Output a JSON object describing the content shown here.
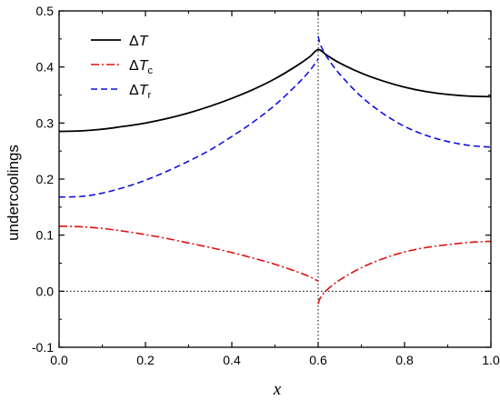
{
  "chart_data": {
    "type": "line",
    "xlabel": "x",
    "ylabel": "undercoolings",
    "xlim": [
      0.0,
      1.0
    ],
    "ylim": [
      -0.1,
      0.5
    ],
    "x_ticks": [
      "0.0",
      "0.2",
      "0.4",
      "0.6",
      "0.8",
      "1.0"
    ],
    "y_ticks": [
      "-0.1",
      "0.0",
      "0.1",
      "0.2",
      "0.3",
      "0.4",
      "0.5"
    ],
    "legend_position": "top-left",
    "reference_lines": {
      "vertical_x": 0.6,
      "horizontal_y": 0.0,
      "style": "dotted"
    },
    "series": [
      {
        "name": "ΔT",
        "symbol": "Δ",
        "var": "T",
        "sub": "",
        "color": "#000000",
        "dash": "solid",
        "x": [
          0.0,
          0.05,
          0.1,
          0.15,
          0.2,
          0.25,
          0.3,
          0.35,
          0.4,
          0.45,
          0.5,
          0.55,
          0.58,
          0.6,
          0.62,
          0.65,
          0.7,
          0.75,
          0.8,
          0.85,
          0.9,
          0.95,
          1.0
        ],
        "y": [
          0.285,
          0.286,
          0.289,
          0.294,
          0.3,
          0.308,
          0.318,
          0.33,
          0.344,
          0.36,
          0.379,
          0.402,
          0.418,
          0.431,
          0.421,
          0.407,
          0.389,
          0.375,
          0.364,
          0.356,
          0.351,
          0.348,
          0.347
        ]
      },
      {
        "name": "ΔTc",
        "symbol": "Δ",
        "var": "T",
        "sub": "c",
        "color": "#e01010",
        "dash": "dashdot",
        "segments": [
          {
            "x": [
              0.0,
              0.05,
              0.1,
              0.15,
              0.2,
              0.25,
              0.3,
              0.35,
              0.4,
              0.45,
              0.5,
              0.55,
              0.58,
              0.6
            ],
            "y": [
              0.116,
              0.115,
              0.112,
              0.107,
              0.101,
              0.094,
              0.086,
              0.078,
              0.069,
              0.059,
              0.048,
              0.035,
              0.026,
              0.018
            ]
          },
          {
            "x": [
              0.6,
              0.605,
              0.62,
              0.65,
              0.7,
              0.75,
              0.8,
              0.85,
              0.9,
              0.95,
              1.0
            ],
            "y": [
              -0.023,
              -0.012,
              0.002,
              0.02,
              0.042,
              0.058,
              0.07,
              0.078,
              0.083,
              0.087,
              0.089
            ]
          }
        ]
      },
      {
        "name": "ΔTr",
        "symbol": "Δ",
        "var": "T",
        "sub": "r",
        "color": "#1010e0",
        "dash": "dashed",
        "segments": [
          {
            "x": [
              0.0,
              0.05,
              0.1,
              0.15,
              0.2,
              0.25,
              0.3,
              0.35,
              0.4,
              0.45,
              0.5,
              0.55,
              0.58,
              0.6
            ],
            "y": [
              0.168,
              0.169,
              0.175,
              0.185,
              0.198,
              0.214,
              0.232,
              0.252,
              0.276,
              0.302,
              0.332,
              0.368,
              0.393,
              0.414
            ]
          },
          {
            "x": [
              0.6,
              0.605,
              0.62,
              0.65,
              0.7,
              0.75,
              0.8,
              0.85,
              0.9,
              0.95,
              1.0
            ],
            "y": [
              0.455,
              0.44,
              0.418,
              0.387,
              0.347,
              0.317,
              0.294,
              0.278,
              0.267,
              0.26,
              0.257
            ]
          }
        ]
      }
    ]
  }
}
